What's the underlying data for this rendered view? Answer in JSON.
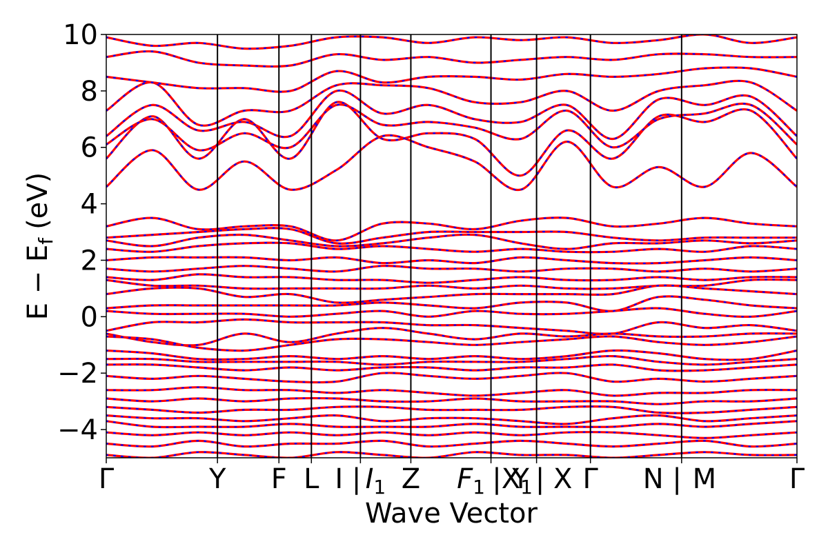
{
  "chart_data": {
    "type": "line",
    "xlabel": "Wave Vector",
    "ylabel": "E − E",
    "ylabel_sub": "f",
    "ylabel_unit": "(eV)",
    "ylim": [
      -5,
      10
    ],
    "yticks": [
      -4,
      -2,
      0,
      2,
      4,
      6,
      8,
      10
    ],
    "ytick_labels": [
      "−4",
      "−2",
      "0",
      "2",
      "4",
      "6",
      "8",
      "10"
    ],
    "grid": false,
    "legend": "none",
    "high_symmetry_points": [
      {
        "label": "Γ",
        "x": 0.0
      },
      {
        "label": "Y",
        "x": 0.161
      },
      {
        "label": "F",
        "x": 0.25
      },
      {
        "label": "L",
        "x": 0.297
      },
      {
        "label": "I | I1",
        "x": 0.368
      },
      {
        "label": "Z",
        "x": 0.441
      },
      {
        "label": "F1 | X1",
        "x": 0.557
      },
      {
        "label": "Y | X",
        "x": 0.623
      },
      {
        "label": "Γ",
        "x": 0.701
      },
      {
        "label": "N | M",
        "x": 0.833
      },
      {
        "label": "Γ",
        "x": 1.0
      }
    ],
    "x_label_items": [
      {
        "text": "Γ",
        "x": 0.0
      },
      {
        "text": "Y",
        "x": 0.161
      },
      {
        "text": "F",
        "x": 0.25
      },
      {
        "text": "L",
        "x": 0.297
      },
      {
        "text": "I |",
        "x": 0.35
      },
      {
        "text": "I",
        "sub": "1",
        "italic": true,
        "x": 0.39
      },
      {
        "text": "Z",
        "x": 0.441
      },
      {
        "text": "F",
        "sub": "1",
        "italic": true,
        "x": 0.528
      },
      {
        "text": "|X",
        "sub": "1",
        "x": 0.588
      },
      {
        "text": "Y",
        "x": 0.6
      },
      {
        "text": "| X",
        "x": 0.648
      },
      {
        "text": "Γ",
        "x": 0.701
      },
      {
        "text": "N |",
        "x": 0.805
      },
      {
        "text": "M",
        "x": 0.866
      },
      {
        "text": "Γ",
        "x": 1.0
      }
    ],
    "series": [
      {
        "color": "#ff0000",
        "style": "solid",
        "bands": [
          [
            4.6,
            5.9,
            4.5,
            5.5,
            4.5,
            5.2,
            6.4,
            6.0,
            5.5,
            4.5,
            6.2,
            4.6,
            5.3,
            4.6,
            5.8,
            4.6
          ],
          [
            5.6,
            7.1,
            5.6,
            7.0,
            5.6,
            7.6,
            6.3,
            6.5,
            6.3,
            5.0,
            6.6,
            5.6,
            7.1,
            6.9,
            7.3,
            5.6
          ],
          [
            6.1,
            7.0,
            5.9,
            6.5,
            6.0,
            7.5,
            6.8,
            6.9,
            6.7,
            6.3,
            7.3,
            6.0,
            7.0,
            7.2,
            7.5,
            6.1
          ],
          [
            6.4,
            7.5,
            6.6,
            6.9,
            6.4,
            8.0,
            7.2,
            7.5,
            7.0,
            6.9,
            7.5,
            6.3,
            7.7,
            7.5,
            7.8,
            6.4
          ],
          [
            7.3,
            8.3,
            6.8,
            7.3,
            7.3,
            8.2,
            8.2,
            8.1,
            7.6,
            7.6,
            8.0,
            7.3,
            8.0,
            8.2,
            8.3,
            7.3
          ],
          [
            8.5,
            8.3,
            8.1,
            8.1,
            8.0,
            8.7,
            8.3,
            8.5,
            8.5,
            8.4,
            8.6,
            8.5,
            8.6,
            8.8,
            8.8,
            8.5
          ],
          [
            9.2,
            9.4,
            9.0,
            8.9,
            8.9,
            9.3,
            9.1,
            9.2,
            9.0,
            9.1,
            9.2,
            9.1,
            9.3,
            9.3,
            9.2,
            9.2
          ],
          [
            9.9,
            9.6,
            9.7,
            9.5,
            9.6,
            9.9,
            9.9,
            9.7,
            9.9,
            9.8,
            9.9,
            9.7,
            9.8,
            10.0,
            9.7,
            9.9
          ],
          [
            3.2,
            3.5,
            3.1,
            3.2,
            3.2,
            2.7,
            3.3,
            3.3,
            3.1,
            3.4,
            3.5,
            3.2,
            3.3,
            3.5,
            3.3,
            3.2
          ],
          [
            2.8,
            2.9,
            3.0,
            3.1,
            3.1,
            2.6,
            2.8,
            3.0,
            3.0,
            3.0,
            3.0,
            2.8,
            2.7,
            2.8,
            2.8,
            2.8
          ],
          [
            2.7,
            2.5,
            2.8,
            2.9,
            2.7,
            2.5,
            2.6,
            2.8,
            2.9,
            2.6,
            2.4,
            2.6,
            2.6,
            2.7,
            2.6,
            2.7
          ],
          [
            2.4,
            2.3,
            2.5,
            2.6,
            2.6,
            2.4,
            2.5,
            2.4,
            2.3,
            2.4,
            2.3,
            2.3,
            2.4,
            2.3,
            2.5,
            2.4
          ],
          [
            2.0,
            2.1,
            2.1,
            2.1,
            2.0,
            2.1,
            1.9,
            2.0,
            1.9,
            2.1,
            2.0,
            1.9,
            1.9,
            2.0,
            2.1,
            2.0
          ],
          [
            1.7,
            1.6,
            1.7,
            1.8,
            1.7,
            1.6,
            1.8,
            1.7,
            1.7,
            1.6,
            1.7,
            1.7,
            1.6,
            1.7,
            1.6,
            1.7
          ],
          [
            1.4,
            1.3,
            1.5,
            1.4,
            1.4,
            1.3,
            1.3,
            1.2,
            1.3,
            1.4,
            1.3,
            1.3,
            1.4,
            1.3,
            1.4,
            1.4
          ],
          [
            1.3,
            1.1,
            1.1,
            1.0,
            1.0,
            1.0,
            1.0,
            1.1,
            1.0,
            1.1,
            1.0,
            1.0,
            1.1,
            1.1,
            1.3,
            1.3
          ],
          [
            0.8,
            1.0,
            1.0,
            0.7,
            0.8,
            0.5,
            0.6,
            0.7,
            0.8,
            0.8,
            0.8,
            0.8,
            1.1,
            1.0,
            0.9,
            0.8
          ],
          [
            0.3,
            0.4,
            0.4,
            0.4,
            0.4,
            0.4,
            0.5,
            0.4,
            0.3,
            0.5,
            0.5,
            0.2,
            0.7,
            0.6,
            0.4,
            0.3
          ],
          [
            0.2,
            0.1,
            0.1,
            0.1,
            0.0,
            0.1,
            0.2,
            0.0,
            0.2,
            0.1,
            0.1,
            0.2,
            0.3,
            0.1,
            0.0,
            0.2
          ],
          [
            -0.5,
            -0.2,
            -0.2,
            -0.1,
            -0.2,
            -0.2,
            -0.2,
            -0.3,
            -0.3,
            -0.4,
            -0.5,
            -0.6,
            -0.2,
            -0.4,
            -0.3,
            -0.5
          ],
          [
            -0.6,
            -0.9,
            -1.0,
            -0.6,
            -0.9,
            -0.6,
            -0.4,
            -0.6,
            -0.8,
            -0.6,
            -0.7,
            -0.6,
            -0.7,
            -0.7,
            -0.6,
            -0.6
          ],
          [
            -0.7,
            -0.8,
            -1.1,
            -1.2,
            -1.0,
            -0.8,
            -0.8,
            -0.9,
            -1.0,
            -0.9,
            -0.8,
            -0.7,
            -0.9,
            -1.0,
            -0.9,
            -0.7
          ],
          [
            -1.2,
            -1.3,
            -1.5,
            -1.5,
            -1.4,
            -1.5,
            -1.4,
            -1.5,
            -1.4,
            -1.5,
            -1.4,
            -1.2,
            -1.3,
            -1.5,
            -1.5,
            -1.2
          ],
          [
            -1.5,
            -1.5,
            -1.6,
            -1.6,
            -1.6,
            -1.6,
            -1.7,
            -1.6,
            -1.6,
            -1.6,
            -1.5,
            -1.4,
            -1.6,
            -1.7,
            -1.6,
            -1.5
          ],
          [
            -1.7,
            -1.7,
            -1.8,
            -1.9,
            -1.8,
            -1.9,
            -1.8,
            -1.8,
            -1.9,
            -1.8,
            -1.8,
            -1.7,
            -1.9,
            -1.9,
            -1.8,
            -1.7
          ],
          [
            -2.1,
            -2.2,
            -2.1,
            -2.2,
            -2.3,
            -2.3,
            -2.0,
            -2.1,
            -2.2,
            -2.1,
            -2.0,
            -2.3,
            -2.2,
            -2.3,
            -2.2,
            -2.1
          ],
          [
            -2.6,
            -2.6,
            -2.5,
            -2.6,
            -2.6,
            -2.7,
            -2.6,
            -2.7,
            -2.8,
            -2.7,
            -2.6,
            -2.8,
            -2.7,
            -2.7,
            -2.6,
            -2.6
          ],
          [
            -2.9,
            -3.0,
            -2.9,
            -3.0,
            -2.9,
            -2.9,
            -3.0,
            -3.0,
            -2.9,
            -3.0,
            -3.0,
            -3.0,
            -3.1,
            -3.0,
            -3.0,
            -2.9
          ],
          [
            -3.2,
            -3.3,
            -3.4,
            -3.3,
            -3.3,
            -3.2,
            -3.2,
            -3.3,
            -3.3,
            -3.3,
            -3.2,
            -3.2,
            -3.4,
            -3.4,
            -3.3,
            -3.2
          ],
          [
            -3.5,
            -3.6,
            -3.6,
            -3.7,
            -3.6,
            -3.5,
            -3.7,
            -3.6,
            -3.6,
            -3.7,
            -3.8,
            -3.6,
            -3.5,
            -3.7,
            -3.6,
            -3.5
          ],
          [
            -3.7,
            -3.9,
            -3.9,
            -3.9,
            -3.8,
            -3.9,
            -3.9,
            -3.9,
            -3.8,
            -3.9,
            -3.9,
            -3.9,
            -3.8,
            -3.9,
            -3.8,
            -3.7
          ],
          [
            -4.1,
            -4.2,
            -4.1,
            -4.2,
            -4.1,
            -4.2,
            -4.1,
            -4.2,
            -4.1,
            -4.2,
            -4.1,
            -4.1,
            -4.2,
            -4.3,
            -4.2,
            -4.1
          ],
          [
            -4.5,
            -4.6,
            -4.4,
            -4.6,
            -4.5,
            -4.5,
            -4.4,
            -4.6,
            -4.5,
            -4.4,
            -4.5,
            -4.6,
            -4.5,
            -4.4,
            -4.6,
            -4.5
          ],
          [
            -4.9,
            -5.0,
            -4.8,
            -4.9,
            -5.0,
            -4.8,
            -4.9,
            -5.0,
            -4.8,
            -4.9,
            -4.9,
            -5.0,
            -4.9,
            -4.8,
            -4.9,
            -4.9
          ]
        ]
      },
      {
        "color": "#0000ff",
        "style": "dotted",
        "same_as": 0
      }
    ]
  }
}
